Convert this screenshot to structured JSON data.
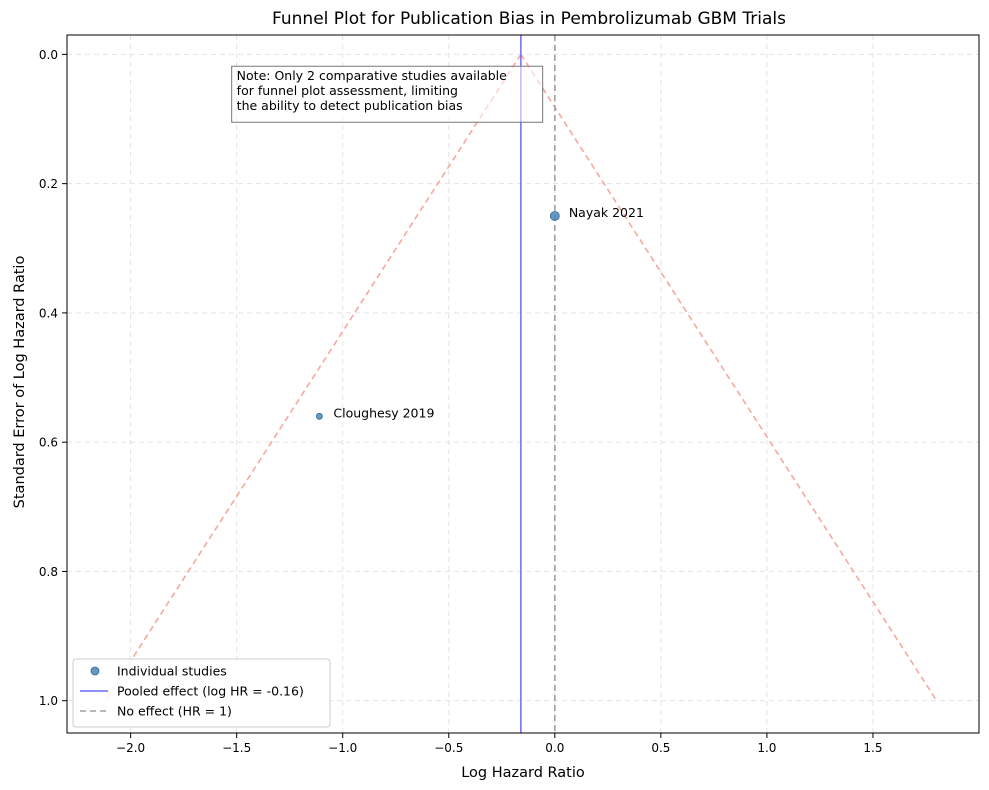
{
  "chart_data": {
    "type": "scatter",
    "title": "Funnel Plot for Publication Bias in Pembrolizumab GBM Trials",
    "xlabel": "Log Hazard Ratio",
    "ylabel": "Standard Error of Log Hazard Ratio",
    "xlim": [
      -2.3,
      2.0
    ],
    "ylim": [
      1.05,
      -0.03
    ],
    "y_inverted": true,
    "grid": true,
    "legend_position": "lower-left",
    "x_ticks": [
      -2.0,
      -1.5,
      -1.0,
      -0.5,
      0.0,
      0.5,
      1.0,
      1.5
    ],
    "x_tick_labels": [
      "−2.0",
      "−1.5",
      "−1.0",
      "−0.5",
      "0.0",
      "0.5",
      "1.0",
      "1.5"
    ],
    "y_ticks": [
      0.0,
      0.2,
      0.4,
      0.6,
      0.8,
      1.0
    ],
    "y_tick_labels": [
      "0.0",
      "0.2",
      "0.4",
      "0.6",
      "0.8",
      "1.0"
    ],
    "points": [
      {
        "label": "Nayak 2021",
        "x": 0.0,
        "y": 0.25,
        "weight": "large"
      },
      {
        "label": "Cloughesy 2019",
        "x": -1.11,
        "y": 0.56,
        "weight": "small"
      }
    ],
    "pooled_effect": -0.16,
    "no_effect": 0.0,
    "funnel": {
      "apex": [
        -0.16,
        0.0
      ],
      "left_end": [
        -2.12,
        1.0
      ],
      "right_end": [
        1.8,
        1.0
      ]
    },
    "annotation": {
      "lines": [
        "Note: Only 2 comparative studies available",
        "for funnel plot assessment, limiting",
        "the ability to detect publication bias"
      ],
      "x": -1.5,
      "y": 0.04
    },
    "legend": [
      {
        "label": "Individual studies",
        "kind": "marker"
      },
      {
        "label": "Pooled effect (log HR = -0.16)",
        "kind": "solid-line"
      },
      {
        "label": "No effect (HR = 1)",
        "kind": "dashed-line"
      }
    ],
    "colors": {
      "points": "#4a86b8",
      "points_edge": "#2f6a9a",
      "pooled": "#6b6bf5",
      "no_effect": "#a0a0a0",
      "funnel": "#f7a8a0",
      "grid": "#e3e3e3"
    }
  }
}
